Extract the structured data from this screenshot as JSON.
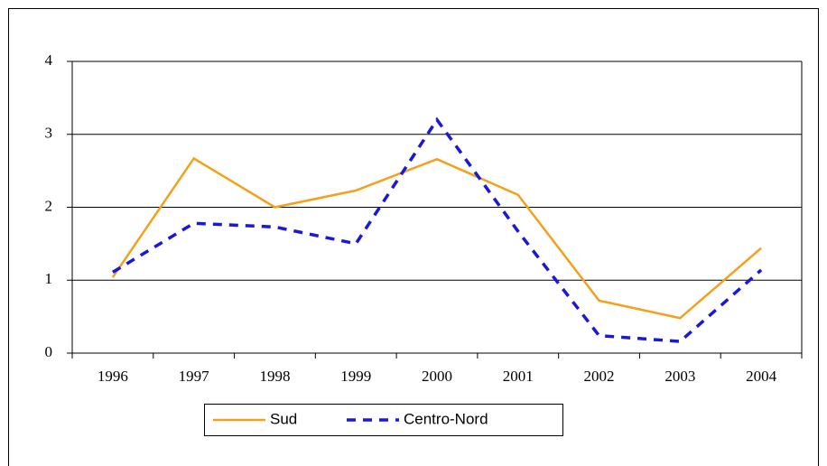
{
  "chart_data": {
    "type": "line",
    "categories": [
      "1996",
      "1997",
      "1998",
      "1999",
      "2000",
      "2001",
      "2002",
      "2003",
      "2004"
    ],
    "series": [
      {
        "name": "Sud",
        "color": "#f5a01a",
        "dash": false,
        "values": [
          1.04,
          2.67,
          2.0,
          2.23,
          2.66,
          2.17,
          0.72,
          0.48,
          1.44
        ]
      },
      {
        "name": "Centro-Nord",
        "color": "#1a1ad6",
        "dash": true,
        "values": [
          1.11,
          1.78,
          1.73,
          1.5,
          3.2,
          1.67,
          0.24,
          0.16,
          1.14
        ]
      }
    ],
    "ylim": [
      0,
      4
    ],
    "yticks": [
      0,
      1,
      2,
      3,
      4
    ],
    "grid": true,
    "legend": "bottom"
  }
}
